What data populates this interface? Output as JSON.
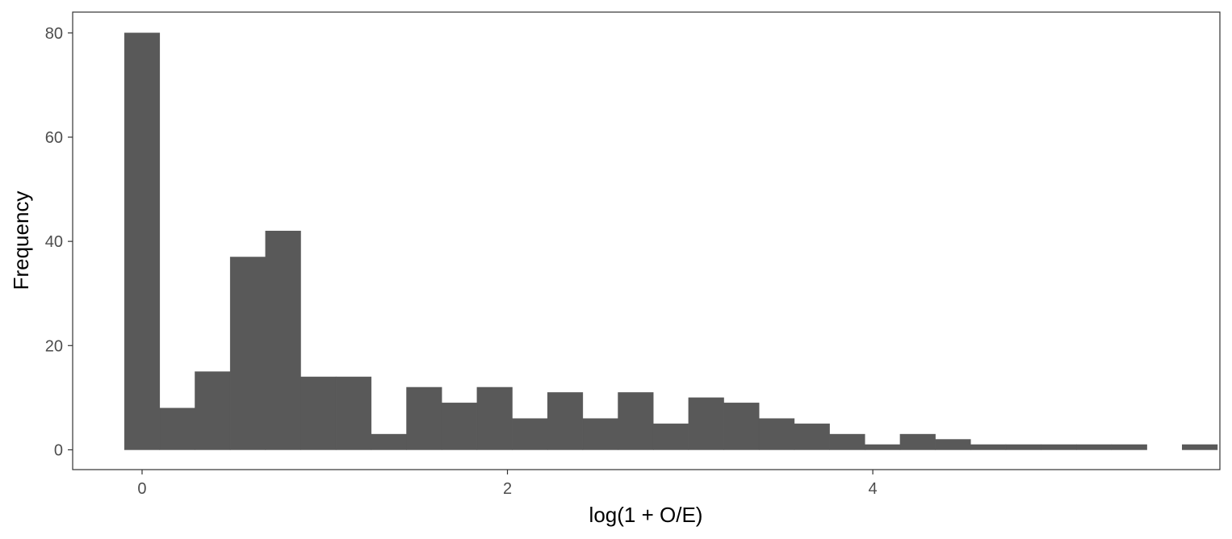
{
  "chart_data": {
    "type": "bar",
    "subtype": "histogram",
    "title": "",
    "xlabel": "log(1 + O/E)",
    "ylabel": "Frequency",
    "xlim": [
      -0.38,
      5.9
    ],
    "ylim": [
      -3.8,
      84
    ],
    "xticks": [
      0,
      2,
      4
    ],
    "xtick_labels": [
      "0",
      "2",
      "4"
    ],
    "yticks": [
      0,
      20,
      40,
      60,
      80
    ],
    "ytick_labels": [
      "0",
      "20",
      "40",
      "60",
      "80"
    ],
    "grid": false,
    "legend": "none",
    "bin_width": 0.193,
    "bin_start": -0.0965,
    "values": [
      80,
      8,
      15,
      37,
      42,
      14,
      14,
      3,
      12,
      9,
      12,
      6,
      11,
      6,
      11,
      5,
      10,
      9,
      6,
      5,
      3,
      1,
      3,
      2,
      1,
      1,
      1,
      1,
      1,
      0,
      1
    ],
    "bar_color": "#595959",
    "panel_border_color": "#333333"
  }
}
